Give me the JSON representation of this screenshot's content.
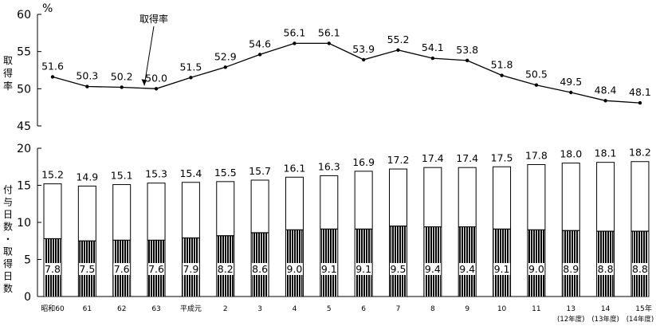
{
  "chart_data": [
    {
      "type": "line",
      "ylabel": "取得率",
      "yunit": "%",
      "ylim": [
        45,
        60
      ],
      "yticks": [
        45,
        50,
        55,
        60
      ],
      "annotation": "取得率",
      "categories": [
        "昭和60",
        "61",
        "62",
        "63",
        "平成元",
        "2",
        "3",
        "4",
        "5",
        "6",
        "7",
        "8",
        "9",
        "10",
        "11",
        "13",
        "14",
        "15"
      ],
      "series": [
        {
          "values": [
            51.6,
            50.3,
            50.2,
            50.0,
            51.5,
            52.9,
            54.6,
            56.1,
            56.1,
            53.9,
            55.2,
            54.1,
            53.8,
            51.8,
            50.5,
            49.5,
            48.4,
            48.1
          ]
        }
      ],
      "value_labels": [
        "51.6",
        "50.3",
        "50.2",
        "50.0",
        "51.5",
        "52.9",
        "54.6",
        "56.1",
        "56.1",
        "53.9",
        "55.2",
        "54.1",
        "53.8",
        "51.8",
        "50.5",
        "49.5",
        "48.4",
        "48.1"
      ],
      "grid": false
    },
    {
      "type": "bar",
      "ylabel": "付与日数・取得日数",
      "ylim": [
        0,
        20
      ],
      "yticks": [
        0,
        5,
        10,
        15,
        20
      ],
      "xunit": "年",
      "categories": [
        "昭和60",
        "61",
        "62",
        "63",
        "平成元",
        "2",
        "3",
        "4",
        "5",
        "6",
        "7",
        "8",
        "9",
        "10",
        "11",
        "13",
        "14",
        "15"
      ],
      "sub_categories": [
        "",
        "",
        "",
        "",
        "",
        "",
        "",
        "",
        "",
        "",
        "",
        "",
        "",
        "",
        "",
        "(12年度)",
        "(13年度)",
        "(14年度)"
      ],
      "series": [
        {
          "values": [
            15.2,
            14.9,
            15.1,
            15.3,
            15.4,
            15.5,
            15.7,
            16.1,
            16.3,
            16.9,
            17.2,
            17.4,
            17.4,
            17.5,
            17.8,
            18.0,
            18.1,
            18.2
          ]
        },
        {
          "values": [
            7.8,
            7.5,
            7.6,
            7.6,
            7.9,
            8.2,
            8.6,
            9.0,
            9.1,
            9.1,
            9.5,
            9.4,
            9.4,
            9.1,
            9.0,
            8.9,
            8.8,
            8.8
          ]
        }
      ],
      "total_labels": [
        "15.2",
        "14.9",
        "15.1",
        "15.3",
        "15.4",
        "15.5",
        "15.7",
        "16.1",
        "16.3",
        "16.9",
        "17.2",
        "17.4",
        "17.4",
        "17.5",
        "17.8",
        "18.0",
        "18.1",
        "18.2"
      ],
      "taken_labels": [
        "7.8",
        "7.5",
        "7.6",
        "7.6",
        "7.9",
        "8.2",
        "8.6",
        "9.0",
        "9.1",
        "9.1",
        "9.5",
        "9.4",
        "9.4",
        "9.1",
        "9.0",
        "8.9",
        "8.8",
        "8.8"
      ],
      "grid": false
    }
  ]
}
